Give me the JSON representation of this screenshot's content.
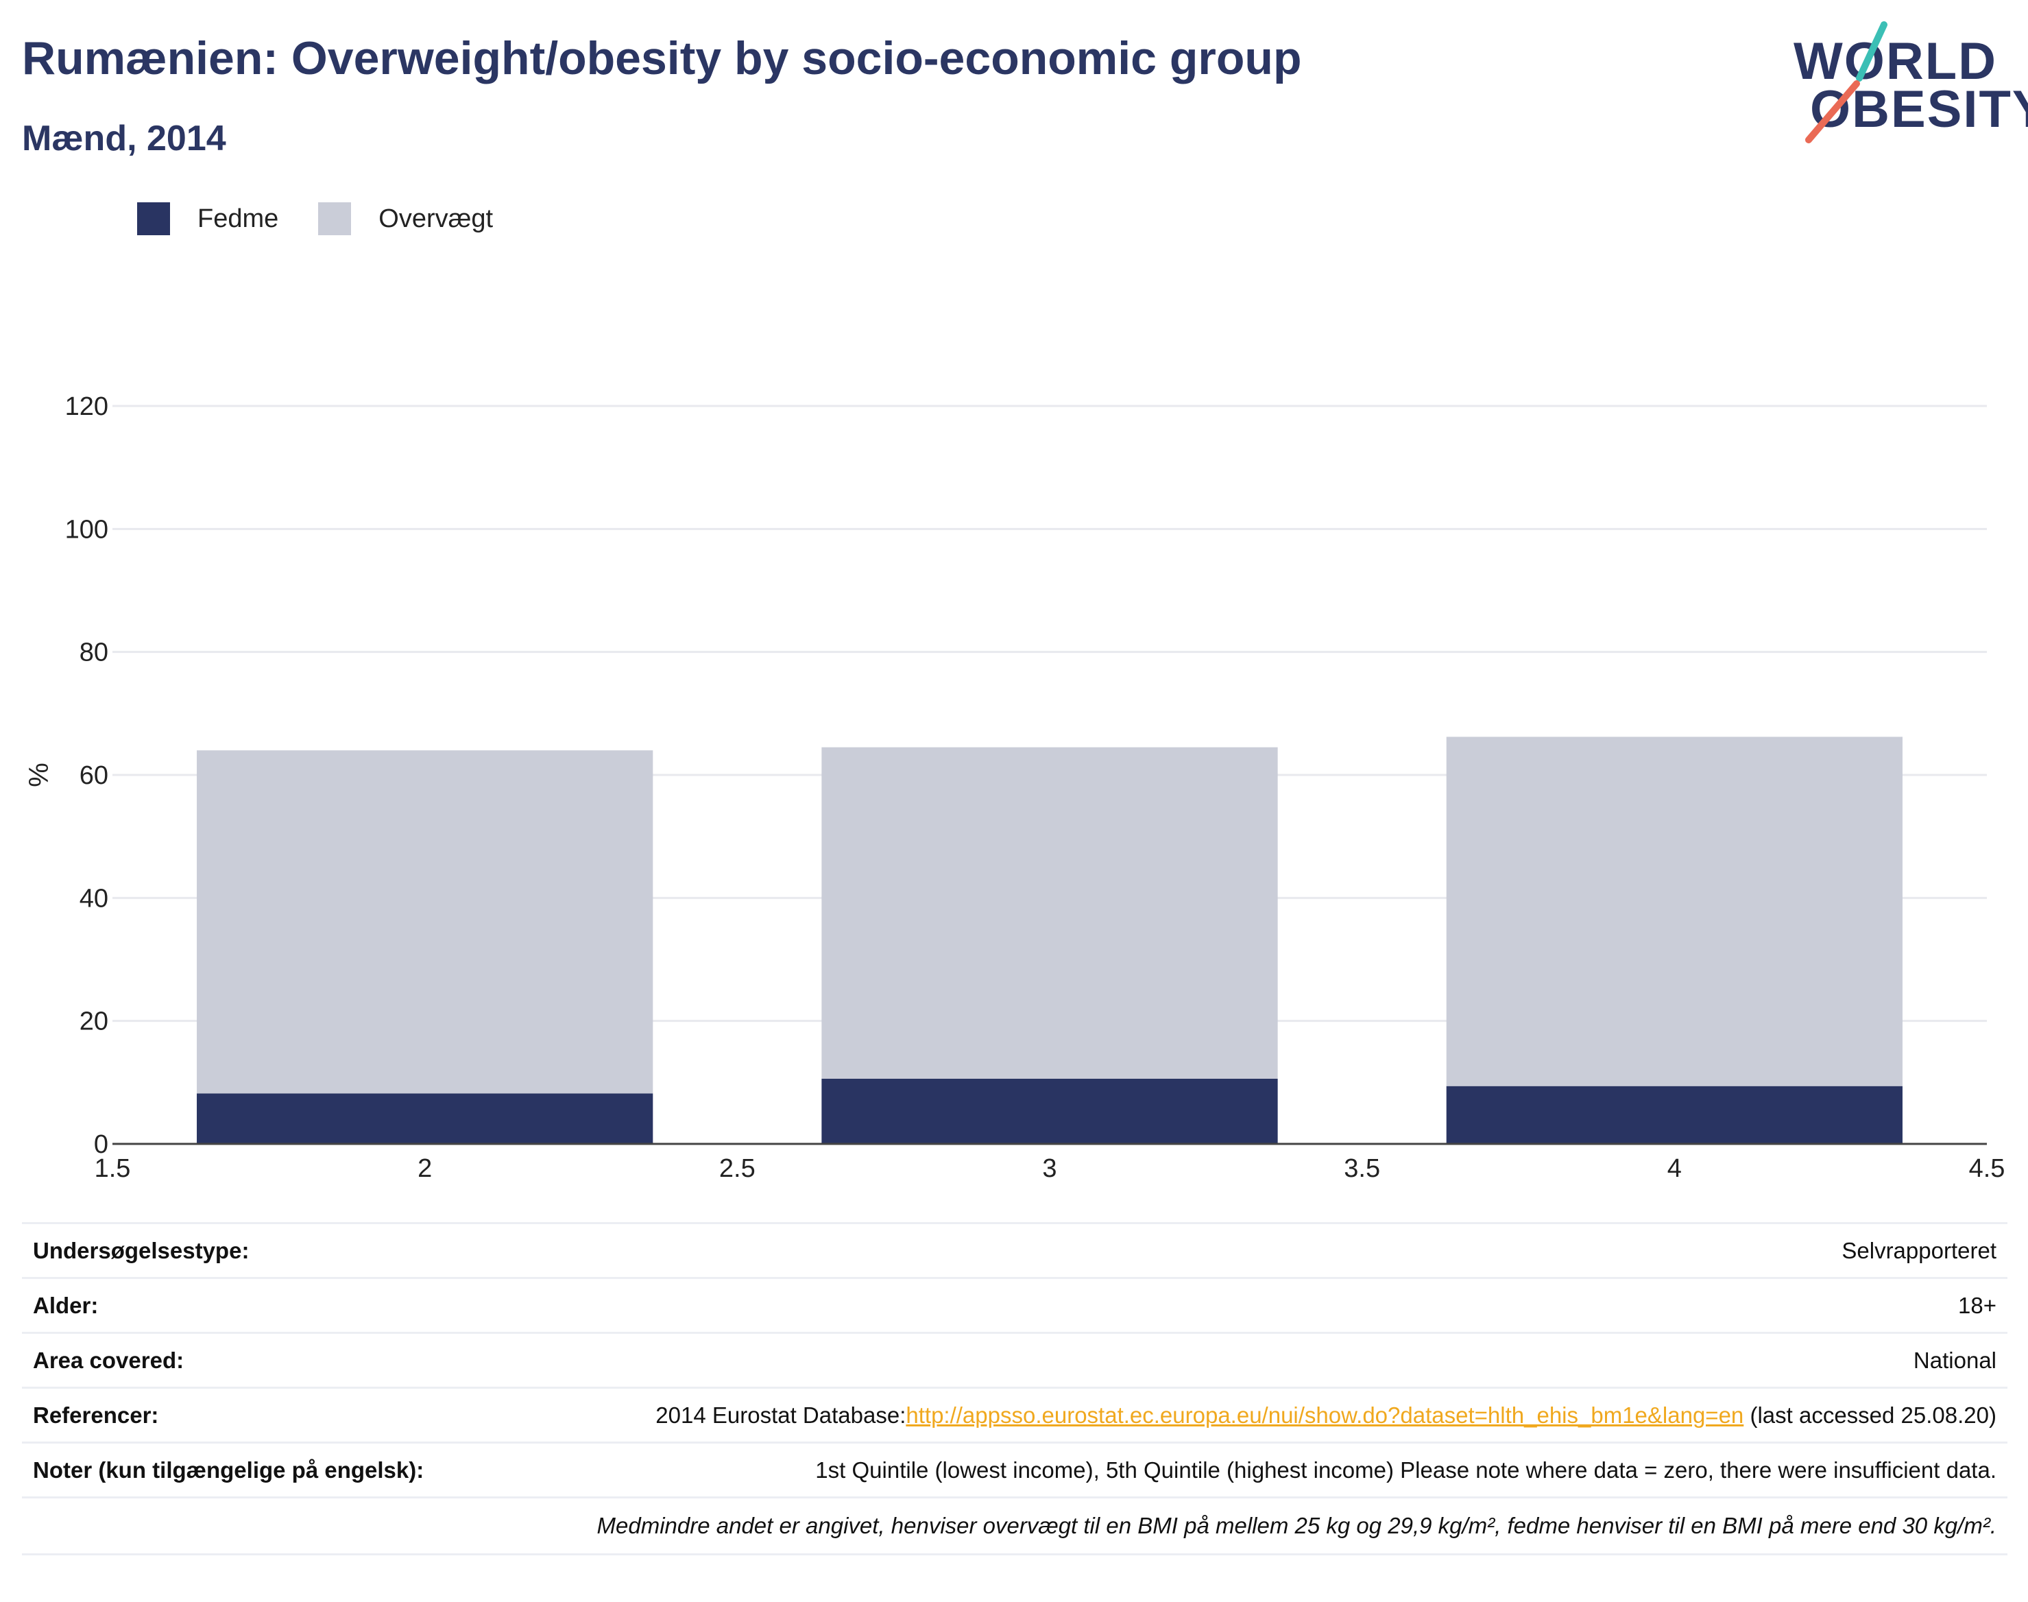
{
  "header": {
    "title": "Rumænien: Overweight/obesity by socio-economic group",
    "subtitle": "Mænd, 2014"
  },
  "logo": {
    "line1": "WORLD",
    "line2": "OBESITY"
  },
  "legend": [
    {
      "label": "Fedme",
      "color": "#293462"
    },
    {
      "label": "Overvægt",
      "color": "#cacdd8"
    }
  ],
  "chart_data": {
    "type": "bar",
    "stacked": true,
    "x": [
      2,
      3,
      4
    ],
    "xlim": [
      1.5,
      4.5
    ],
    "x_ticks": [
      "1.5",
      "2",
      "2.5",
      "3",
      "3.5",
      "4",
      "4.5"
    ],
    "ylabel": "%",
    "ylim": [
      0,
      120
    ],
    "y_ticks": [
      "0",
      "20",
      "40",
      "60",
      "80",
      "100",
      "120"
    ],
    "grid": true,
    "legend_position": "top-left",
    "series": [
      {
        "name": "Fedme",
        "color": "#293462",
        "values": [
          8.2,
          10.6,
          9.4
        ]
      },
      {
        "name": "Overvægt",
        "color": "#cacdd8",
        "values": [
          55.8,
          53.9,
          56.8
        ]
      }
    ]
  },
  "info": {
    "survey_type": {
      "label": "Undersøgelsestype:",
      "value": "Selvrapporteret"
    },
    "age": {
      "label": "Alder:",
      "value": "18+"
    },
    "area": {
      "label": "Area covered:",
      "value": "National"
    },
    "references": {
      "label": "Referencer:",
      "prefix": "2014 Eurostat Database:",
      "link": "http://appsso.eurostat.ec.europa.eu/nui/show.do?dataset=hlth_ehis_bm1e&lang=en",
      "suffix": " (last accessed 25.08.20)"
    },
    "notes": {
      "label": "Noter (kun tilgængelige på engelsk):",
      "value": "1st Quintile (lowest income), 5th Quintile (highest income) Please note where data = zero, there were insufficient data."
    },
    "definition": "Medmindre andet er angivet, henviser overvægt til en BMI på mellem 25 kg og 29,9 kg/m², fedme henviser til en BMI på mere end 30 kg/m²."
  }
}
